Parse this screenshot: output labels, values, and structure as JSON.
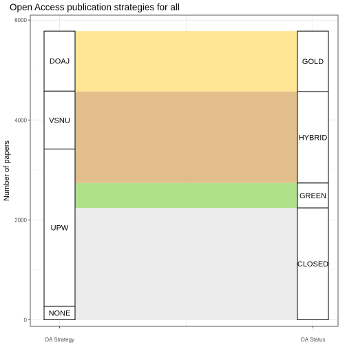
{
  "chart_data": {
    "type": "alluvial",
    "title": "Open Access publication strategies for all",
    "xlabel": "",
    "ylabel": "Number of papers",
    "ylim": [
      0,
      6000
    ],
    "yticks": [
      0,
      2000,
      4000,
      6000
    ],
    "grid": true,
    "axes": [
      "OA Strategy",
      "OA Status"
    ],
    "strata": {
      "OA Strategy": [
        {
          "name": "NONE",
          "value": 270
        },
        {
          "name": "UPW",
          "value": 3150
        },
        {
          "name": "VSNU",
          "value": 1160
        },
        {
          "name": "DOAJ",
          "value": 1200
        }
      ],
      "OA Status": [
        {
          "name": "CLOSED",
          "value": 2240
        },
        {
          "name": "GREEN",
          "value": 500
        },
        {
          "name": "HYBRID",
          "value": 1830
        },
        {
          "name": "GOLD",
          "value": 1210
        }
      ]
    },
    "flows": [
      {
        "status": "CLOSED",
        "value": 2240,
        "color": "#ebebeb"
      },
      {
        "status": "GREEN",
        "value": 500,
        "color": "#aadf84"
      },
      {
        "status": "HYBRID",
        "value": 1830,
        "color": "#e2bb87"
      },
      {
        "status": "GOLD",
        "value": 1210,
        "color": "#ffe58e"
      }
    ]
  }
}
